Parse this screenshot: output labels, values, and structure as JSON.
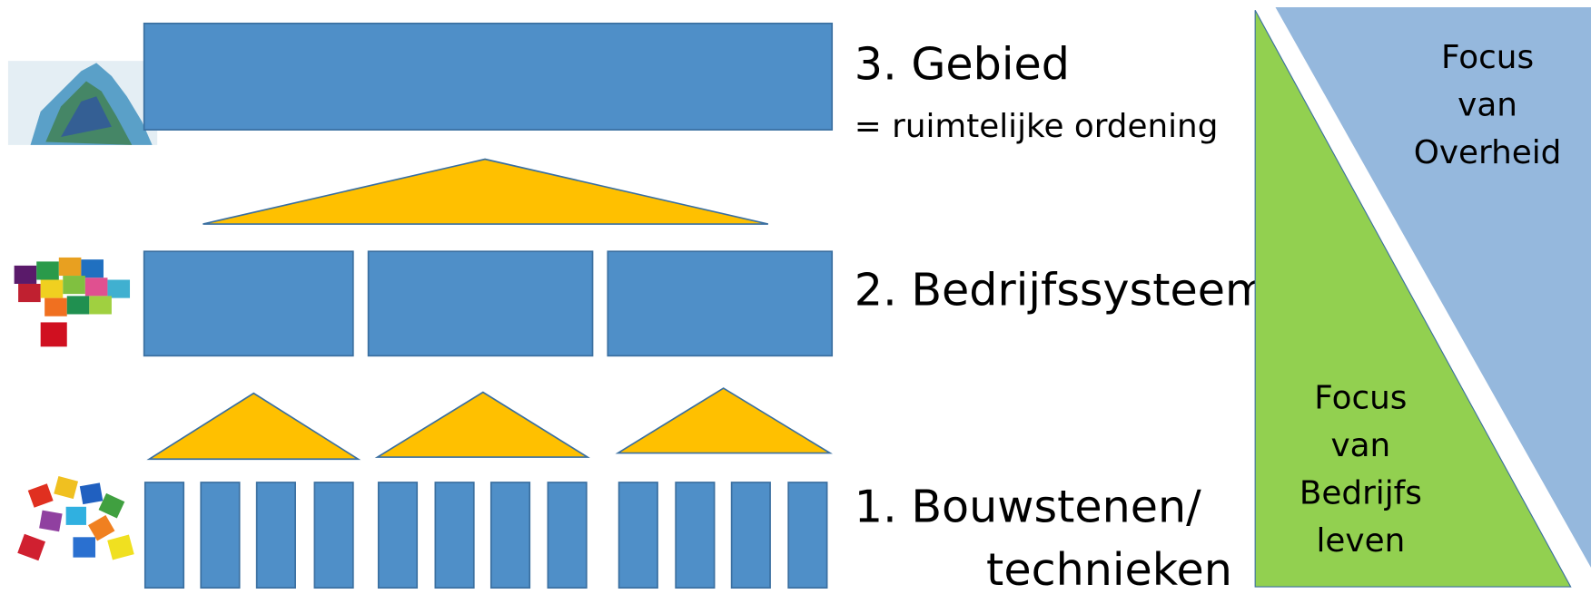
{
  "levels": [
    {
      "title": "3. Gebied",
      "subtitle": "= ruimtelijke ordening"
    },
    {
      "title": "2. Bedrijfssysteem"
    },
    {
      "title": "1. Bouwstenen/",
      "title_line2": "technieken"
    }
  ],
  "focus_government": [
    "Focus",
    "van",
    "Overheid"
  ],
  "focus_business": [
    "Focus",
    "van",
    "Bedrijfs",
    "leven"
  ]
}
